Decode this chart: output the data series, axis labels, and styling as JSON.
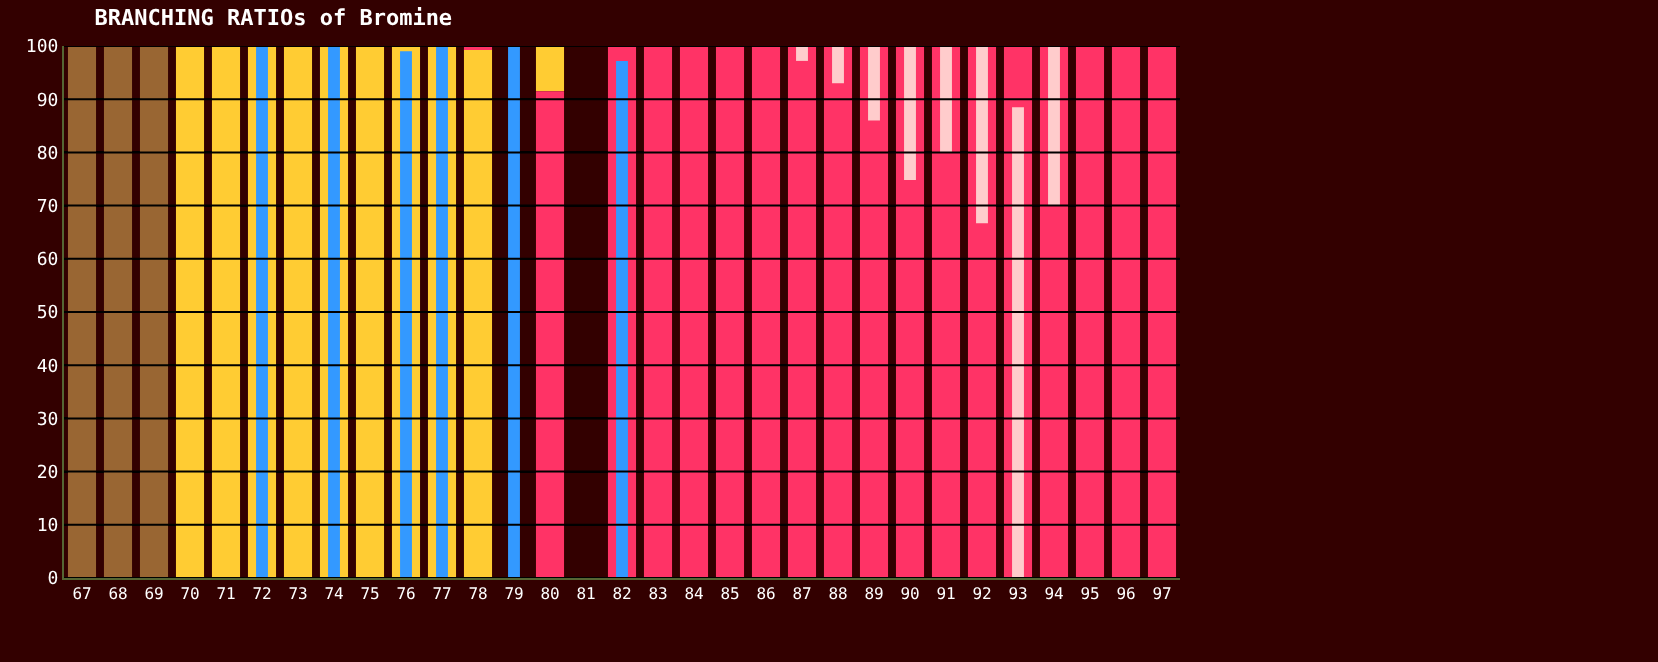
{
  "chart_data": {
    "type": "bar",
    "title": "BRANCHING RATIOs of Bromine",
    "categories": [
      "67",
      "68",
      "69",
      "70",
      "71",
      "72",
      "73",
      "74",
      "75",
      "76",
      "77",
      "78",
      "79",
      "80",
      "81",
      "82",
      "83",
      "84",
      "85",
      "86",
      "87",
      "88",
      "89",
      "90",
      "91",
      "92",
      "93",
      "94",
      "95",
      "96",
      "97"
    ],
    "series": [
      {
        "color": "#996633",
        "values": [
          100,
          100,
          100,
          null,
          null,
          null,
          null,
          null,
          null,
          null,
          null,
          null,
          null,
          null,
          null,
          null,
          null,
          null,
          null,
          null,
          null,
          null,
          null,
          null,
          null,
          null,
          null,
          null,
          null,
          null,
          null
        ]
      },
      {
        "color": "#ffcc33",
        "values": [
          null,
          null,
          null,
          100,
          100,
          100,
          100,
          100,
          100,
          100,
          100,
          99.5,
          null,
          8.5,
          null,
          null,
          null,
          null,
          null,
          null,
          null,
          null,
          null,
          null,
          null,
          null,
          null,
          null,
          null,
          null,
          null
        ],
        "base": [
          null,
          null,
          null,
          0,
          0,
          0,
          0,
          0,
          0,
          0,
          0,
          0,
          null,
          91.5,
          null,
          null,
          null,
          null,
          null,
          null,
          null,
          null,
          null,
          null,
          null,
          null,
          null,
          null,
          null,
          null,
          null
        ]
      },
      {
        "color": "#ff3366",
        "values": [
          null,
          null,
          null,
          null,
          null,
          null,
          null,
          null,
          null,
          null,
          null,
          0.5,
          null,
          91.5,
          null,
          100,
          100,
          100,
          100,
          100,
          100,
          100,
          100,
          100,
          100,
          100,
          100,
          100,
          100,
          100,
          100
        ],
        "base": [
          null,
          null,
          null,
          null,
          null,
          null,
          null,
          null,
          null,
          null,
          null,
          99.5,
          null,
          0,
          null,
          0,
          0,
          0,
          0,
          0,
          0,
          0,
          0,
          0,
          0,
          0,
          0,
          0,
          0,
          0,
          0
        ]
      },
      {
        "color": "#ffcccc",
        "values": [
          null,
          null,
          null,
          null,
          null,
          null,
          null,
          null,
          null,
          null,
          null,
          null,
          null,
          null,
          null,
          null,
          null,
          null,
          null,
          null,
          2.8,
          7,
          14,
          25.2,
          20,
          33.3,
          88.5,
          30,
          null,
          null,
          null
        ],
        "base": [
          null,
          null,
          null,
          null,
          null,
          null,
          null,
          null,
          null,
          null,
          null,
          null,
          null,
          null,
          null,
          null,
          null,
          null,
          null,
          null,
          97.2,
          93,
          86,
          74.8,
          80,
          66.7,
          0,
          70,
          null,
          null,
          null
        ]
      },
      {
        "color": "#3399ff",
        "values": [
          null,
          null,
          null,
          null,
          null,
          100,
          null,
          100,
          null,
          99,
          100,
          null,
          100,
          null,
          null,
          97.2,
          null,
          null,
          null,
          null,
          null,
          null,
          null,
          null,
          null,
          null,
          null,
          null,
          null,
          null,
          null
        ]
      }
    ],
    "ylim": [
      0,
      100
    ],
    "yticks": [
      0,
      10,
      20,
      30,
      40,
      50,
      60,
      70,
      80,
      90,
      100
    ],
    "grid": "y"
  }
}
